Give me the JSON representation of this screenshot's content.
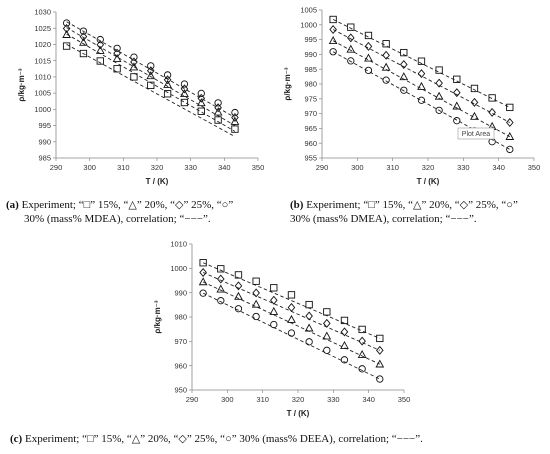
{
  "chart_data": [
    {
      "id": "a",
      "type": "scatter",
      "xlabel": "T / (K)",
      "ylabel": "ρ/kg·m⁻³",
      "xlim": [
        290,
        350
      ],
      "ylim": [
        985,
        1030
      ],
      "xticks": [
        290,
        300,
        310,
        320,
        330,
        340,
        350
      ],
      "yticks": [
        985,
        990,
        995,
        1000,
        1005,
        1010,
        1015,
        1020,
        1025,
        1030
      ],
      "x": [
        293.15,
        298.15,
        303.15,
        308.15,
        313.15,
        318.15,
        323.15,
        328.15,
        333.15,
        338.15,
        343.15
      ],
      "series": [
        {
          "marker": "square",
          "values": [
            1019.5,
            1017.2,
            1014.9,
            1012.5,
            1010.0,
            1007.4,
            1004.8,
            1002.1,
            999.4,
            996.7,
            993.9
          ],
          "fit": [
            1020.0,
            991.6
          ]
        },
        {
          "marker": "triangle",
          "values": [
            1023.0,
            1020.6,
            1018.1,
            1015.6,
            1013.0,
            1010.3,
            1007.6,
            1004.8,
            1002.0,
            999.1,
            996.2
          ],
          "fit": [
            1023.2,
            993.2
          ]
        },
        {
          "marker": "diamond",
          "values": [
            1024.9,
            1022.4,
            1019.9,
            1017.3,
            1014.6,
            1011.9,
            1009.1,
            1006.3,
            1003.4,
            1000.5,
            997.5
          ],
          "fit": [
            1025.2,
            995.0
          ]
        },
        {
          "marker": "circle",
          "values": [
            1026.6,
            1024.1,
            1021.5,
            1018.8,
            1016.1,
            1013.4,
            1010.6,
            1007.8,
            1004.9,
            1002.0,
            999.0
          ],
          "fit": [
            1027.0,
            997.5
          ]
        }
      ]
    },
    {
      "id": "b",
      "type": "scatter",
      "xlabel": "T / (K)",
      "ylabel": "ρ/kg·m⁻³",
      "xlim": [
        290,
        350
      ],
      "ylim": [
        955,
        1005
      ],
      "xticks": [
        290,
        300,
        310,
        320,
        330,
        340,
        350
      ],
      "yticks": [
        955,
        960,
        965,
        970,
        975,
        980,
        985,
        990,
        995,
        1000,
        1005
      ],
      "x": [
        293.15,
        298.15,
        303.15,
        308.15,
        313.15,
        318.15,
        323.15,
        328.15,
        333.15,
        338.15,
        343.15
      ],
      "series": [
        {
          "marker": "square",
          "values": [
            1001.8,
            999.2,
            996.4,
            993.6,
            990.6,
            987.7,
            984.7,
            981.6,
            978.5,
            975.3,
            972.1
          ],
          "fit": [
            1001.8,
            972.1
          ]
        },
        {
          "marker": "diamond",
          "values": [
            998.4,
            995.6,
            992.7,
            989.7,
            986.6,
            983.5,
            980.3,
            977.1,
            973.8,
            970.4,
            967.0
          ],
          "fit": [
            998.4,
            967.0
          ]
        },
        {
          "marker": "triangle",
          "values": [
            994.6,
            991.7,
            988.7,
            985.6,
            982.4,
            979.1,
            975.8,
            972.5,
            969.0,
            965.6,
            962.2
          ],
          "fit": [
            994.6,
            962.2
          ]
        },
        {
          "marker": "circle",
          "values": [
            990.9,
            987.8,
            984.6,
            981.3,
            977.9,
            974.5,
            971.1,
            967.6,
            964.1,
            960.5,
            957.9
          ],
          "fit": [
            990.9,
            957.9
          ]
        }
      ],
      "annotation": "Plot Area"
    },
    {
      "id": "c",
      "type": "scatter",
      "xlabel": "T / (K)",
      "ylabel": "ρ/kg·m⁻³",
      "xlim": [
        290,
        350
      ],
      "ylim": [
        950,
        1010
      ],
      "xticks": [
        290,
        300,
        310,
        320,
        330,
        340,
        350
      ],
      "yticks": [
        950,
        960,
        970,
        980,
        990,
        1000,
        1010
      ],
      "x": [
        293.15,
        298.15,
        303.15,
        308.15,
        313.15,
        318.15,
        323.15,
        328.15,
        333.15,
        338.15,
        343.15
      ],
      "series": [
        {
          "marker": "square",
          "values": [
            1002.3,
            999.8,
            997.3,
            994.7,
            992.0,
            989.1,
            985.1,
            982.1,
            978.6,
            974.9,
            971.2
          ],
          "fit": [
            1002.3,
            971.2
          ]
        },
        {
          "marker": "diamond",
          "values": [
            998.3,
            995.6,
            992.8,
            989.9,
            986.9,
            983.9,
            980.4,
            977.4,
            973.9,
            970.1,
            966.3
          ],
          "fit": [
            998.3,
            966.3
          ]
        },
        {
          "marker": "triangle",
          "values": [
            994.4,
            991.4,
            988.4,
            985.2,
            982.2,
            978.9,
            975.4,
            972.1,
            968.2,
            964.5,
            960.6
          ],
          "fit": [
            994.4,
            960.6
          ]
        },
        {
          "marker": "circle",
          "values": [
            989.8,
            986.7,
            983.4,
            980.2,
            976.9,
            973.4,
            969.8,
            966.3,
            962.4,
            958.7,
            954.5
          ],
          "fit": [
            989.8,
            954.5
          ]
        }
      ]
    }
  ],
  "captions": {
    "a": {
      "tag": "(a)",
      "line1": " Experiment; “□” 15%, “△” 20%, “◇” 25%, “○”",
      "line2": "30% (mass% MDEA), correlation; “−−−”."
    },
    "b": {
      "tag": "(b)",
      "line1": " Experiment; “□” 15%, “△” 20%, “◇” 25%, “○”",
      "line2": "30% (mass% DMEA), correlation; “−−−”."
    },
    "c": {
      "tag": "(c)",
      "line1": " Experiment; “□” 15%, “△” 20%, “◇” 25%, “○” 30% (mass% DEEA), correlation; “−−−”."
    }
  }
}
